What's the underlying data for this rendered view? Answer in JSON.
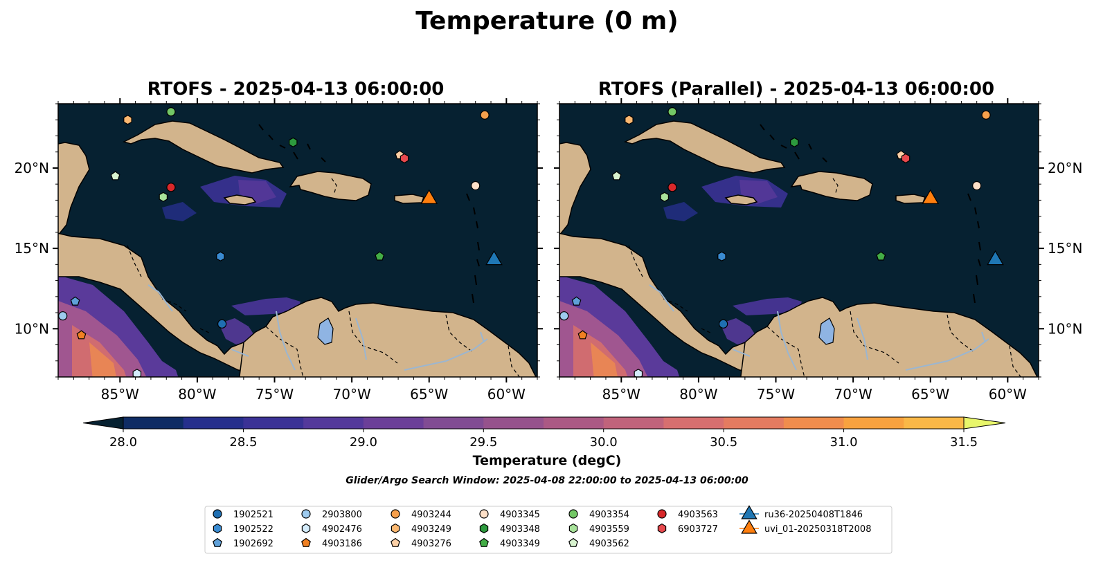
{
  "figure": {
    "suptitle": "Temperature (0 m)",
    "search_window": "Glider/Argo Search Window: 2025-04-08 22:00:00 to 2025-04-13 06:00:00"
  },
  "colors": {
    "ocean": "#062131",
    "land": "#d2b48c",
    "river": "#9bb6d1",
    "lake": "#8fb4e3"
  },
  "chart_data": {
    "type": "map-contour",
    "panels": [
      {
        "title": "RTOFS - 2025-04-13 06:00:00",
        "lat_labels_side": "left"
      },
      {
        "title": "RTOFS (Parallel) - 2025-04-13 06:00:00",
        "lat_labels_side": "right"
      }
    ],
    "xlim": [
      -89,
      -58
    ],
    "ylim": [
      7,
      24
    ],
    "xticks": [
      -85,
      -80,
      -75,
      -70,
      -65,
      -60
    ],
    "xtick_labels": [
      "85°W",
      "80°W",
      "75°W",
      "70°W",
      "65°W",
      "60°W"
    ],
    "yticks": [
      10,
      15,
      20
    ],
    "ytick_labels": [
      "10°N",
      "15°N",
      "20°N"
    ],
    "colorbar": {
      "label": "Temperature (degC)",
      "min": 28.0,
      "max": 31.5,
      "step": 0.25,
      "extend": "both",
      "ticks": [
        28.0,
        28.5,
        29.0,
        29.5,
        30.0,
        30.5,
        31.0,
        31.5
      ],
      "tick_labels": [
        "28.0",
        "28.5",
        "29.0",
        "29.5",
        "30.0",
        "30.5",
        "31.0",
        "31.5"
      ],
      "colors": [
        "#062131",
        "#0f2c64",
        "#262f8c",
        "#3b3296",
        "#54399b",
        "#6b3f98",
        "#814c93",
        "#96528c",
        "#ab5984",
        "#c0637b",
        "#d76f6f",
        "#e47b60",
        "#f08d4d",
        "#f8a23f",
        "#fab847",
        "#f5d34e",
        "#e8f66b"
      ]
    },
    "markers": [
      {
        "id": "1902521",
        "shape": "circle",
        "color": "#1f6fb2",
        "lon": -78.4,
        "lat": 10.3
      },
      {
        "id": "1902522",
        "shape": "hexagon",
        "color": "#3a8bd1",
        "lon": -78.5,
        "lat": 14.5
      },
      {
        "id": "1902692",
        "shape": "pentagon",
        "color": "#5fa0d8",
        "lon": -87.9,
        "lat": 11.7
      },
      {
        "id": "2903800",
        "shape": "circle",
        "color": "#9ecbef",
        "lon": -88.7,
        "lat": 10.8
      },
      {
        "id": "4902476",
        "shape": "hexagon",
        "color": "#d4ecfb",
        "lon": -83.9,
        "lat": 7.2
      },
      {
        "id": "4903186",
        "shape": "pentagon",
        "color": "#f08022",
        "lon": -87.5,
        "lat": 9.6
      },
      {
        "id": "4903244",
        "shape": "circle",
        "color": "#f7a04c",
        "lon": -61.4,
        "lat": 23.3
      },
      {
        "id": "4903249",
        "shape": "hexagon",
        "color": "#fbb871",
        "lon": -84.5,
        "lat": 23.0
      },
      {
        "id": "4903276",
        "shape": "pentagon",
        "color": "#fdd0a6",
        "lon": -66.9,
        "lat": 20.8
      },
      {
        "id": "4903345",
        "shape": "circle",
        "color": "#fde0c8",
        "lon": -62.0,
        "lat": 18.9
      },
      {
        "id": "4903348",
        "shape": "hexagon",
        "color": "#2d9a3e",
        "lon": -73.8,
        "lat": 21.6
      },
      {
        "id": "4903349",
        "shape": "pentagon",
        "color": "#43ad46",
        "lon": -68.2,
        "lat": 14.5
      },
      {
        "id": "4903354",
        "shape": "circle",
        "color": "#73c766",
        "lon": -81.7,
        "lat": 23.5
      },
      {
        "id": "4903559",
        "shape": "hexagon",
        "color": "#a8e29a",
        "lon": -82.2,
        "lat": 18.2
      },
      {
        "id": "4903562",
        "shape": "pentagon",
        "color": "#d8f3cf",
        "lon": -85.3,
        "lat": 19.5
      },
      {
        "id": "4903563",
        "shape": "circle",
        "color": "#d8282a",
        "lon": -81.7,
        "lat": 18.8
      },
      {
        "id": "6903727",
        "shape": "hexagon",
        "color": "#e8494e",
        "lon": -66.6,
        "lat": 20.6
      }
    ],
    "gliders": [
      {
        "id": "ru36-20250408T1846",
        "color": "#1f77b4",
        "lon": -60.8,
        "lat": 14.4
      },
      {
        "id": "uvi_01-20250318T2008",
        "color": "#ff7f0e",
        "lon": -65.0,
        "lat": 18.2
      }
    ]
  },
  "legend": {
    "columns": [
      [
        "1902521",
        "1902522",
        "1902692"
      ],
      [
        "2903800",
        "4902476",
        "4903186"
      ],
      [
        "4903244",
        "4903249",
        "4903276"
      ],
      [
        "4903345",
        "4903348",
        "4903349"
      ],
      [
        "4903354",
        "4903559",
        "4903562"
      ],
      [
        "4903563",
        "6903727"
      ],
      [
        "ru36-20250408T1846",
        "uvi_01-20250318T2008"
      ]
    ]
  }
}
